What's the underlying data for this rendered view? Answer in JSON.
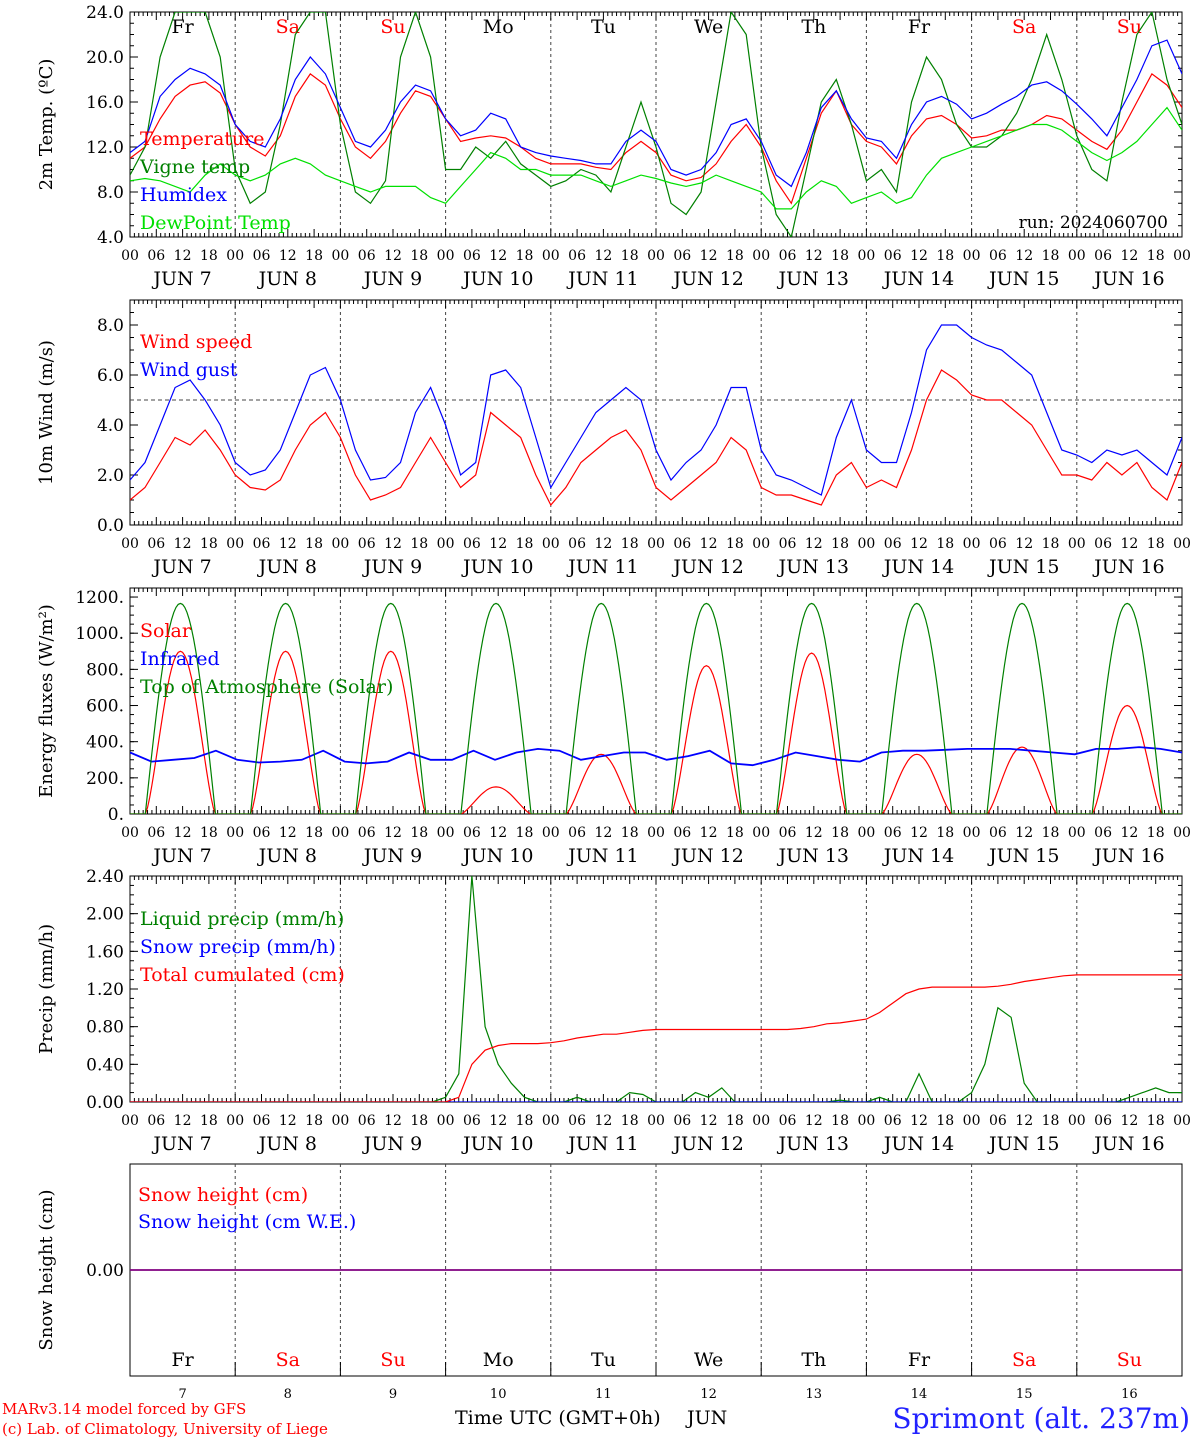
{
  "run_label": "run: 2024060700",
  "footer": {
    "model": "MARv3.14 model forced by GFS",
    "credit": "(c) Lab. of Climatology, University of Liege",
    "location": "Sprimont (alt. 237m)",
    "time_axis": "Time UTC (GMT+0h)",
    "month": "JUN"
  },
  "weekdays": [
    "Fr",
    "Sa",
    "Su",
    "Mo",
    "Tu",
    "We",
    "Th",
    "Fr",
    "Sa",
    "Su"
  ],
  "weekend_flags": [
    false,
    true,
    true,
    false,
    false,
    false,
    false,
    false,
    true,
    true
  ],
  "day_numbers": [
    "7",
    "8",
    "9",
    "10",
    "11",
    "12",
    "13",
    "14",
    "15",
    "16"
  ],
  "date_labels": [
    "JUN  7",
    "JUN  8",
    "JUN  9",
    "JUN 10",
    "JUN 11",
    "JUN 12",
    "JUN 13",
    "JUN 14",
    "JUN 15",
    "JUN 16"
  ],
  "hour_ticks": [
    "00",
    "06",
    "12",
    "18"
  ],
  "final_hour": "00",
  "colors": {
    "red": "#ff0000",
    "green": "#008000",
    "blue": "#0000ff",
    "lightgreen": "#00e000",
    "purple": "#800080",
    "grid": "#555555"
  },
  "chart_data": [
    {
      "type": "line",
      "ylabel": "2m Temp. (ºC)",
      "ylim": [
        4.0,
        24.0
      ],
      "yticks": [
        "4.0",
        "8.0",
        "12.0",
        "16.0",
        "20.0",
        "24.0"
      ],
      "ytick_values": [
        4,
        8,
        12,
        16,
        20,
        24
      ],
      "x_hours_step": 3,
      "series": [
        {
          "name": "Temperature",
          "color": "#ff0000",
          "values": [
            11.0,
            12.0,
            14.5,
            16.5,
            17.5,
            17.8,
            16.8,
            14.0,
            12.0,
            11.2,
            13.0,
            16.5,
            18.5,
            17.5,
            14.5,
            12.0,
            11.0,
            12.5,
            15.0,
            17.0,
            16.5,
            14.5,
            12.5,
            12.8,
            13.0,
            12.8,
            12.0,
            11.0,
            10.5,
            10.5,
            10.5,
            10.2,
            10.0,
            11.5,
            12.5,
            11.5,
            9.5,
            9.0,
            9.3,
            10.5,
            12.5,
            14.0,
            12.0,
            9.0,
            7.0,
            11.0,
            15.0,
            17.0,
            14.0,
            12.5,
            12.0,
            10.5,
            13.0,
            14.5,
            14.8,
            14.0,
            12.8,
            13.0,
            13.5,
            13.5,
            14.0,
            14.8,
            14.5,
            13.5,
            12.5,
            11.8,
            13.5,
            16.0,
            18.5,
            17.5,
            15.5
          ]
        },
        {
          "name": "Vigne temp",
          "color": "#008000",
          "values": [
            9.5,
            12.0,
            20.0,
            24.0,
            24.0,
            24.0,
            20.0,
            10.0,
            7.0,
            8.0,
            14.0,
            22.0,
            24.0,
            24.0,
            14.0,
            8.0,
            7.0,
            9.0,
            20.0,
            24.0,
            20.0,
            10.0,
            10.0,
            12.0,
            11.0,
            12.5,
            10.5,
            9.5,
            8.5,
            9.0,
            10.0,
            9.5,
            8.0,
            12.0,
            16.0,
            12.0,
            7.0,
            6.0,
            8.0,
            16.0,
            24.0,
            22.0,
            12.0,
            6.0,
            4.0,
            10.0,
            16.0,
            18.0,
            14.0,
            9.0,
            10.0,
            8.0,
            16.0,
            20.0,
            18.0,
            14.0,
            12.0,
            12.0,
            13.0,
            15.0,
            18.0,
            22.0,
            18.0,
            13.0,
            10.0,
            9.0,
            16.0,
            22.0,
            24.0,
            18.0,
            14.0
          ]
        },
        {
          "name": "Humidex",
          "color": "#0000ff",
          "values": [
            11.5,
            12.5,
            16.5,
            18.0,
            19.0,
            18.5,
            17.5,
            14.0,
            12.5,
            12.0,
            14.5,
            18.0,
            20.0,
            18.5,
            15.5,
            12.5,
            12.0,
            13.5,
            16.0,
            17.5,
            17.0,
            14.5,
            13.0,
            13.5,
            15.0,
            14.5,
            12.0,
            11.5,
            11.2,
            11.0,
            10.8,
            10.5,
            10.5,
            12.5,
            13.5,
            12.5,
            10.0,
            9.5,
            10.0,
            11.5,
            14.0,
            14.5,
            12.5,
            9.5,
            8.5,
            11.5,
            15.5,
            17.0,
            14.5,
            12.8,
            12.5,
            11.0,
            14.0,
            16.0,
            16.5,
            15.8,
            14.5,
            15.0,
            15.8,
            16.5,
            17.5,
            17.8,
            17.0,
            15.8,
            14.5,
            13.0,
            15.5,
            18.0,
            21.0,
            21.5,
            18.5
          ]
        },
        {
          "name": "DewPoint Temp",
          "color": "#00e000",
          "values": [
            9.0,
            9.2,
            9.0,
            8.5,
            8.0,
            9.5,
            10.5,
            9.5,
            9.0,
            9.5,
            10.5,
            11.0,
            10.5,
            9.5,
            9.0,
            8.5,
            8.0,
            8.5,
            8.5,
            8.5,
            7.5,
            7.0,
            8.5,
            10.0,
            11.5,
            11.0,
            10.0,
            10.0,
            9.5,
            9.5,
            9.5,
            9.0,
            8.5,
            9.0,
            9.5,
            9.2,
            8.8,
            8.5,
            8.8,
            9.5,
            9.0,
            8.5,
            8.0,
            6.5,
            6.5,
            8.0,
            9.0,
            8.5,
            7.0,
            7.5,
            8.0,
            7.0,
            7.5,
            9.5,
            11.0,
            11.5,
            12.0,
            12.5,
            13.0,
            13.5,
            14.0,
            14.0,
            13.5,
            12.5,
            11.5,
            10.8,
            11.5,
            12.5,
            14.0,
            15.5,
            13.5
          ]
        }
      ]
    },
    {
      "type": "line",
      "ylabel": "10m Wind (m/s)",
      "ylim": [
        0.0,
        9.0
      ],
      "yticks": [
        "0.0",
        "2.0",
        "4.0",
        "6.0",
        "8.0"
      ],
      "ytick_values": [
        0,
        2,
        4,
        6,
        8
      ],
      "reference_line": 5.0,
      "x_hours_step": 3,
      "series": [
        {
          "name": "Wind speed",
          "color": "#ff0000",
          "values": [
            1.0,
            1.5,
            2.5,
            3.5,
            3.2,
            3.8,
            3.0,
            2.0,
            1.5,
            1.4,
            1.8,
            3.0,
            4.0,
            4.5,
            3.5,
            2.0,
            1.0,
            1.2,
            1.5,
            2.5,
            3.5,
            2.5,
            1.5,
            2.0,
            4.5,
            4.0,
            3.5,
            2.0,
            0.8,
            1.5,
            2.5,
            3.0,
            3.5,
            3.8,
            3.0,
            1.5,
            1.0,
            1.5,
            2.0,
            2.5,
            3.5,
            3.0,
            1.5,
            1.2,
            1.2,
            1.0,
            0.8,
            2.0,
            2.5,
            1.5,
            1.8,
            1.5,
            3.0,
            5.0,
            6.2,
            5.8,
            5.2,
            5.0,
            5.0,
            4.5,
            4.0,
            3.0,
            2.0,
            2.0,
            1.8,
            2.5,
            2.0,
            2.5,
            1.5,
            1.0,
            2.5
          ]
        },
        {
          "name": "Wind gust",
          "color": "#0000ff",
          "values": [
            1.8,
            2.5,
            4.0,
            5.5,
            5.8,
            5.0,
            4.0,
            2.5,
            2.0,
            2.2,
            3.0,
            4.5,
            6.0,
            6.3,
            5.0,
            3.0,
            1.8,
            1.9,
            2.5,
            4.5,
            5.5,
            4.0,
            2.0,
            2.5,
            6.0,
            6.2,
            5.5,
            3.5,
            1.5,
            2.5,
            3.5,
            4.5,
            5.0,
            5.5,
            5.0,
            3.0,
            1.8,
            2.5,
            3.0,
            4.0,
            5.5,
            5.5,
            3.0,
            2.0,
            1.8,
            1.5,
            1.2,
            3.5,
            5.0,
            3.0,
            2.5,
            2.5,
            4.5,
            7.0,
            8.0,
            8.0,
            7.5,
            7.2,
            7.0,
            6.5,
            6.0,
            4.5,
            3.0,
            2.8,
            2.5,
            3.0,
            2.8,
            3.0,
            2.5,
            2.0,
            3.5
          ]
        }
      ]
    },
    {
      "type": "line",
      "ylabel": "Energy fluxes (W/m²)",
      "ylim": [
        0,
        1250
      ],
      "yticks": [
        "0.",
        "200.",
        "400.",
        "600.",
        "800.",
        "1000.",
        "1200."
      ],
      "ytick_values": [
        0,
        200,
        400,
        600,
        800,
        1000,
        1200
      ],
      "x_hours_step": 3,
      "series": [
        {
          "name": "Solar",
          "color": "#ff0000",
          "peaks": [
            900,
            900,
            900,
            150,
            330,
            820,
            890,
            330,
            370,
            600
          ]
        },
        {
          "name": "Infrared",
          "color": "#0000ff",
          "values": [
            340,
            290,
            300,
            310,
            350,
            300,
            285,
            290,
            300,
            350,
            290,
            280,
            290,
            340,
            300,
            300,
            350,
            300,
            340,
            360,
            350,
            300,
            320,
            340,
            340,
            300,
            320,
            350,
            280,
            270,
            300,
            340,
            320,
            300,
            290,
            340,
            350,
            350,
            355,
            360,
            360,
            360,
            350,
            340,
            330,
            360,
            360,
            370,
            360,
            340
          ]
        },
        {
          "name": "Top of Atmosphere (Solar)",
          "color": "#008000",
          "peak": 1165
        }
      ]
    },
    {
      "type": "line",
      "ylabel": "Precip (mm/h)",
      "ylim": [
        0.0,
        2.4
      ],
      "yticks": [
        "0.00",
        "0.40",
        "0.80",
        "1.20",
        "1.60",
        "2.00",
        "2.40"
      ],
      "ytick_values": [
        0,
        0.4,
        0.8,
        1.2,
        1.6,
        2.0,
        2.4
      ],
      "x_hours_step": 3,
      "series": [
        {
          "name": "Liquid precip (mm/h)",
          "color": "#008000",
          "values": [
            0,
            0,
            0,
            0,
            0,
            0,
            0,
            0,
            0,
            0,
            0,
            0,
            0,
            0,
            0,
            0,
            0,
            0,
            0,
            0,
            0,
            0,
            0,
            0,
            0.05,
            0.3,
            2.4,
            0.8,
            0.4,
            0.2,
            0.05,
            0,
            0,
            0,
            0.05,
            0,
            0,
            0,
            0.1,
            0.08,
            0,
            0,
            0,
            0.1,
            0.05,
            0.15,
            0,
            0,
            0,
            0,
            0,
            0,
            0,
            0,
            0.02,
            0,
            0,
            0.05,
            0,
            0,
            0.3,
            0,
            0,
            0,
            0.1,
            0.4,
            1.0,
            0.9,
            0.2,
            0,
            0,
            0,
            0,
            0,
            0,
            0,
            0.05,
            0.1,
            0.15,
            0.1,
            0.1
          ]
        },
        {
          "name": "Snow precip (mm/h)",
          "color": "#0000ff",
          "values": [
            0,
            0,
            0,
            0,
            0,
            0,
            0,
            0,
            0,
            0,
            0,
            0,
            0,
            0,
            0,
            0,
            0,
            0,
            0,
            0,
            0,
            0,
            0,
            0,
            0,
            0,
            0,
            0,
            0,
            0,
            0,
            0,
            0,
            0,
            0,
            0,
            0,
            0,
            0,
            0,
            0,
            0,
            0,
            0,
            0,
            0,
            0,
            0,
            0,
            0,
            0,
            0,
            0,
            0,
            0,
            0,
            0,
            0,
            0,
            0,
            0,
            0,
            0,
            0,
            0,
            0,
            0,
            0,
            0,
            0,
            0,
            0,
            0,
            0,
            0,
            0,
            0,
            0,
            0,
            0,
            0
          ]
        },
        {
          "name": "Total cumulated (cm)",
          "color": "#ff0000",
          "values": [
            0,
            0,
            0,
            0,
            0,
            0,
            0,
            0,
            0,
            0,
            0,
            0,
            0,
            0,
            0,
            0,
            0,
            0,
            0,
            0,
            0,
            0,
            0,
            0,
            0,
            0.05,
            0.4,
            0.55,
            0.6,
            0.62,
            0.62,
            0.62,
            0.63,
            0.65,
            0.68,
            0.7,
            0.72,
            0.72,
            0.74,
            0.76,
            0.77,
            0.77,
            0.77,
            0.77,
            0.77,
            0.77,
            0.77,
            0.77,
            0.77,
            0.77,
            0.77,
            0.78,
            0.8,
            0.83,
            0.84,
            0.86,
            0.88,
            0.95,
            1.05,
            1.15,
            1.2,
            1.22,
            1.22,
            1.22,
            1.22,
            1.22,
            1.23,
            1.25,
            1.28,
            1.3,
            1.32,
            1.34,
            1.35,
            1.35,
            1.35,
            1.35,
            1.35,
            1.35,
            1.35,
            1.35,
            1.35
          ]
        }
      ]
    },
    {
      "type": "line",
      "ylabel": "Snow height (cm)",
      "ylim": [
        -1,
        1
      ],
      "yticks": [
        "0.00"
      ],
      "ytick_values": [
        0
      ],
      "x_hours_step": 3,
      "series": [
        {
          "name": "Snow height (cm)",
          "color": "#ff0000",
          "values": [
            0,
            0
          ]
        },
        {
          "name": "Snow height (cm W.E.)",
          "color": "#0000ff",
          "values": [
            0,
            0
          ]
        }
      ]
    }
  ]
}
